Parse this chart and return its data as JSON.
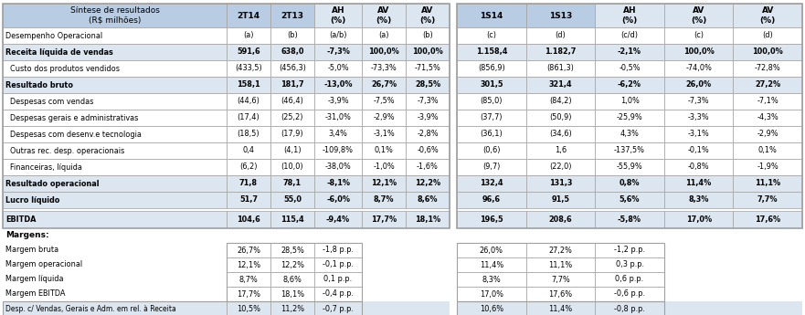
{
  "title_left": "Síntese de resultados\n(R$ milhões)",
  "header_row1_left": [
    "2T14",
    "2T13",
    "AH\n(%)",
    "AV\n(%)",
    "AV\n(%)"
  ],
  "header_row1_right": [
    "1S14",
    "1S13",
    "AH\n(%)",
    "AV\n(%)",
    "AV\n(%)"
  ],
  "rows": [
    {
      "label": "Desempenho Operacional",
      "bold": false,
      "indent": false,
      "left": [
        "(a)",
        "(b)",
        "(a/b)",
        "(a)",
        "(b)"
      ],
      "right": [
        "(c)",
        "(d)",
        "(c/d)",
        "(c)",
        "(d)"
      ]
    },
    {
      "label": "Receita líquida de vendas",
      "bold": true,
      "indent": false,
      "left": [
        "591,6",
        "638,0",
        "-7,3%",
        "100,0%",
        "100,0%"
      ],
      "right": [
        "1.158,4",
        "1.182,7",
        "-2,1%",
        "100,0%",
        "100,0%"
      ]
    },
    {
      "label": "Custo dos produtos vendidos",
      "bold": false,
      "indent": true,
      "left": [
        "(433,5)",
        "(456,3)",
        "-5,0%",
        "-73,3%",
        "-71,5%"
      ],
      "right": [
        "(856,9)",
        "(861,3)",
        "-0,5%",
        "-74,0%",
        "-72,8%"
      ]
    },
    {
      "label": "Resultado bruto",
      "bold": true,
      "indent": false,
      "left": [
        "158,1",
        "181,7",
        "-13,0%",
        "26,7%",
        "28,5%"
      ],
      "right": [
        "301,5",
        "321,4",
        "-6,2%",
        "26,0%",
        "27,2%"
      ]
    },
    {
      "label": "Despesas com vendas",
      "bold": false,
      "indent": true,
      "left": [
        "(44,6)",
        "(46,4)",
        "-3,9%",
        "-7,5%",
        "-7,3%"
      ],
      "right": [
        "(85,0)",
        "(84,2)",
        "1,0%",
        "-7,3%",
        "-7,1%"
      ]
    },
    {
      "label": "Despesas gerais e administrativas",
      "bold": false,
      "indent": true,
      "left": [
        "(17,4)",
        "(25,2)",
        "-31,0%",
        "-2,9%",
        "-3,9%"
      ],
      "right": [
        "(37,7)",
        "(50,9)",
        "-25,9%",
        "-3,3%",
        "-4,3%"
      ]
    },
    {
      "label": "Despesas com desenv.e tecnologia",
      "bold": false,
      "indent": true,
      "left": [
        "(18,5)",
        "(17,9)",
        "3,4%",
        "-3,1%",
        "-2,8%"
      ],
      "right": [
        "(36,1)",
        "(34,6)",
        "4,3%",
        "-3,1%",
        "-2,9%"
      ]
    },
    {
      "label": "Outras rec. desp. operacionais",
      "bold": false,
      "indent": true,
      "left": [
        "0,4",
        "(4,1)",
        "-109,8%",
        "0,1%",
        "-0,6%"
      ],
      "right": [
        "(0,6)",
        "1,6",
        "-137,5%",
        "-0,1%",
        "0,1%"
      ]
    },
    {
      "label": "Financeiras, líquida",
      "bold": false,
      "indent": true,
      "left": [
        "(6,2)",
        "(10,0)",
        "-38,0%",
        "-1,0%",
        "-1,6%"
      ],
      "right": [
        "(9,7)",
        "(22,0)",
        "-55,9%",
        "-0,8%",
        "-1,9%"
      ]
    },
    {
      "label": "Resultado operacional",
      "bold": true,
      "indent": false,
      "left": [
        "71,8",
        "78,1",
        "-8,1%",
        "12,1%",
        "12,2%"
      ],
      "right": [
        "132,4",
        "131,3",
        "0,8%",
        "11,4%",
        "11,1%"
      ]
    },
    {
      "label": "Lucro líquido",
      "bold": true,
      "indent": false,
      "left": [
        "51,7",
        "55,0",
        "-6,0%",
        "8,7%",
        "8,6%"
      ],
      "right": [
        "96,6",
        "91,5",
        "5,6%",
        "8,3%",
        "7,7%"
      ]
    }
  ],
  "ebitda_row": {
    "label": "EBITDA",
    "bold": true,
    "left": [
      "104,6",
      "115,4",
      "-9,4%",
      "17,7%",
      "18,1%"
    ],
    "right": [
      "196,5",
      "208,6",
      "-5,8%",
      "17,0%",
      "17,6%"
    ]
  },
  "margins_label": "Margens:",
  "margin_rows": [
    {
      "label": "Margem bruta",
      "left": [
        "26,7%",
        "28,5%",
        "-1,8 p.p."
      ],
      "right": [
        "26,0%",
        "27,2%",
        "-1,2 p.p."
      ]
    },
    {
      "label": "Margem operacional",
      "left": [
        "12,1%",
        "12,2%",
        "-0,1 p.p."
      ],
      "right": [
        "11,4%",
        "11,1%",
        "0,3 p.p."
      ]
    },
    {
      "label": "Margem líquida",
      "left": [
        "8,7%",
        "8,6%",
        "0,1 p.p."
      ],
      "right": [
        "8,3%",
        "7,7%",
        "0,6 p.p."
      ]
    },
    {
      "label": "Margem EBITDA",
      "left": [
        "17,7%",
        "18,1%",
        "-0,4 p.p."
      ],
      "right": [
        "17,0%",
        "17,6%",
        "-0,6 p.p."
      ]
    }
  ],
  "desp_row": {
    "label": "Desp. c/ Vendas, Gerais e Adm. em rel. à Receita",
    "left": [
      "10,5%",
      "11,2%",
      "-0,7 p.p."
    ],
    "right": [
      "10,6%",
      "11,4%",
      "-0,8 p.p."
    ]
  },
  "colors": {
    "header_title_bg": "#b8cce4",
    "header_data_bg": "#b8cce4",
    "header_ah_av_bg": "#dce6f1",
    "row_bold_bg": "#dce6f1",
    "row_normal_bg": "#ffffff",
    "ebitda_bg": "#dce6f1",
    "border": "#a0a0a0",
    "text": "#000000"
  }
}
